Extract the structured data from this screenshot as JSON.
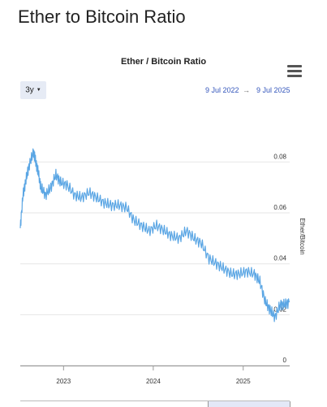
{
  "page": {
    "title": "Ether to Bitcoin Ratio"
  },
  "toolbar": {
    "range_label": "3y",
    "date_from": "9 Jul 2022",
    "arrow": "→",
    "date_to": "9 Jul 2025"
  },
  "icons": {
    "menu": "hamburger-menu-icon",
    "caret": "caret-down-icon"
  },
  "colors": {
    "series": "#5ba6e4",
    "grid": "#e6e6e6",
    "range_accent": "#3355bb"
  },
  "chart_data": {
    "type": "line",
    "title": "Ether / Bitcoin Ratio",
    "ylabel": "Ether/Bitcoin",
    "xlabel": "",
    "xlim": [
      "2022-07-09",
      "2025-07-09"
    ],
    "ylim": [
      0,
      0.1
    ],
    "x_ticks": [
      "2023",
      "2024",
      "2025"
    ],
    "y_ticks": [
      {
        "value": 0,
        "label": "0"
      },
      {
        "value": 0.02,
        "label": "0.02"
      },
      {
        "value": 0.04,
        "label": "0.04"
      },
      {
        "value": 0.06,
        "label": "0.06"
      },
      {
        "value": 0.08,
        "label": "0.08"
      }
    ],
    "grid": true,
    "series": [
      {
        "x": [
          "2022-07-09",
          "2022-07-20",
          "2022-08-01",
          "2022-08-15",
          "2022-09-01",
          "2022-09-10",
          "2022-09-20",
          "2022-10-01",
          "2022-10-20",
          "2022-11-10",
          "2022-12-01",
          "2022-12-20",
          "2023-01-15",
          "2023-02-15",
          "2023-03-15",
          "2023-04-15",
          "2023-05-15",
          "2023-06-15",
          "2023-07-15",
          "2023-08-15",
          "2023-09-15",
          "2023-10-15",
          "2023-11-15",
          "2023-12-15",
          "2024-01-15",
          "2024-02-15",
          "2024-03-15",
          "2024-04-15",
          "2024-05-15",
          "2024-06-15",
          "2024-07-15",
          "2024-08-15",
          "2024-09-15",
          "2024-10-15",
          "2024-11-15",
          "2024-12-15",
          "2025-01-15",
          "2025-02-15",
          "2025-03-10",
          "2025-04-01",
          "2025-04-20",
          "2025-05-10",
          "2025-06-01",
          "2025-06-20",
          "2025-07-09"
        ],
        "y": [
          0.054,
          0.067,
          0.073,
          0.079,
          0.084,
          0.08,
          0.076,
          0.07,
          0.067,
          0.07,
          0.075,
          0.072,
          0.071,
          0.067,
          0.066,
          0.068,
          0.066,
          0.064,
          0.063,
          0.063,
          0.062,
          0.057,
          0.055,
          0.053,
          0.055,
          0.053,
          0.051,
          0.05,
          0.053,
          0.05,
          0.048,
          0.042,
          0.04,
          0.038,
          0.036,
          0.036,
          0.037,
          0.036,
          0.033,
          0.025,
          0.022,
          0.019,
          0.024,
          0.024,
          0.025
        ]
      }
    ]
  }
}
